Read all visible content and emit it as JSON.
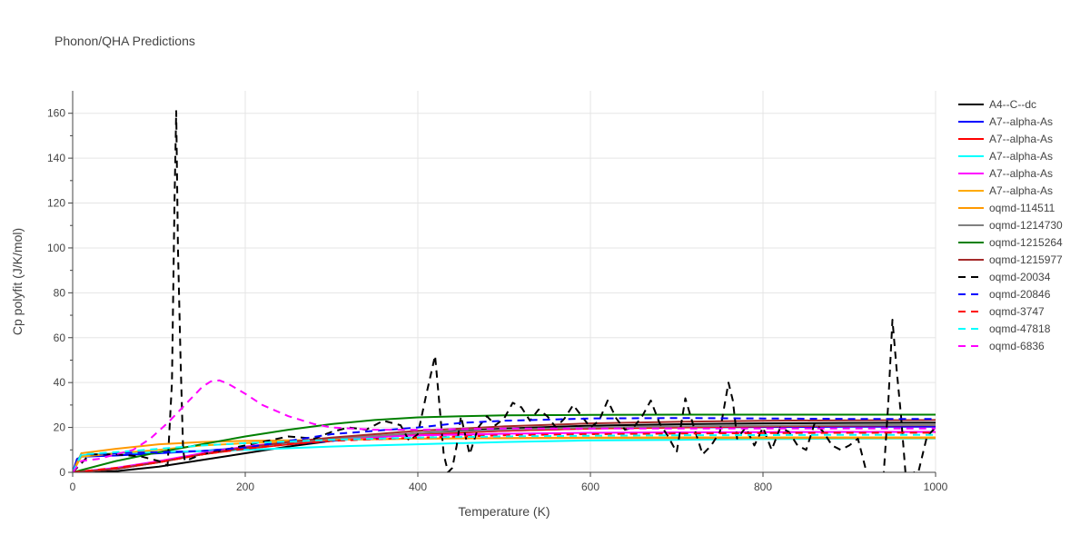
{
  "chart_data": {
    "type": "line",
    "title": "Phonon/QHA Predictions",
    "xlabel": "Temperature (K)",
    "ylabel": "Cp polyfit (J/K/mol)",
    "xlim": [
      0,
      1000
    ],
    "ylim": [
      0,
      170
    ],
    "xticks": [
      0,
      200,
      400,
      600,
      800,
      1000
    ],
    "yticks": [
      0,
      20,
      40,
      60,
      80,
      100,
      120,
      140,
      160
    ],
    "grid": true,
    "legend": "right",
    "series": [
      {
        "name": "A4--C--dc",
        "color": "#000000",
        "dash": "solid",
        "x": [
          0,
          50,
          100,
          150,
          200,
          250,
          300,
          350,
          400,
          450,
          500,
          550,
          600,
          700,
          800,
          900,
          1000
        ],
        "y": [
          0,
          0.5,
          2.5,
          5.5,
          8.5,
          11.5,
          14,
          16,
          17.5,
          18.5,
          19.5,
          20.2,
          20.8,
          21.4,
          21.8,
          22,
          22.1
        ]
      },
      {
        "name": "A7--alpha-As",
        "color": "#0000ff",
        "dash": "solid",
        "x": [
          0,
          5,
          10,
          50,
          100,
          150,
          200,
          300,
          400,
          500,
          600,
          700,
          800,
          900,
          1000
        ],
        "y": [
          0,
          6,
          7,
          7.5,
          8.5,
          9.5,
          11,
          14,
          17,
          18.5,
          19.5,
          20,
          20.2,
          20.3,
          20.3
        ]
      },
      {
        "name": "A7--alpha-As",
        "color": "#ff0000",
        "dash": "solid",
        "x": [
          0,
          50,
          100,
          150,
          200,
          250,
          300,
          400,
          500,
          600,
          700,
          800,
          900,
          1000
        ],
        "y": [
          0,
          1.5,
          4.5,
          8,
          10.5,
          12.5,
          14.5,
          17,
          18.5,
          19.5,
          20,
          20.5,
          20.8,
          21
        ]
      },
      {
        "name": "A7--alpha-As",
        "color": "#00ffff",
        "dash": "solid",
        "x": [
          0,
          10,
          20,
          50,
          100,
          200,
          300,
          400,
          500,
          600,
          700,
          800,
          900,
          1000
        ],
        "y": [
          0,
          7.5,
          8,
          8.5,
          9,
          10,
          11.5,
          12.5,
          13.5,
          14.2,
          14.5,
          14.8,
          15,
          15.1
        ]
      },
      {
        "name": "A7--alpha-As",
        "color": "#ff00ff",
        "dash": "solid",
        "x": [
          0,
          50,
          100,
          150,
          200,
          250,
          300,
          400,
          500,
          600,
          700,
          800,
          900,
          1000
        ],
        "y": [
          0,
          2,
          5,
          8.5,
          11.5,
          13.5,
          15,
          16.5,
          17.2,
          17.6,
          17.8,
          17.9,
          18,
          18
        ]
      },
      {
        "name": "A7--alpha-As",
        "color": "#ffaa00",
        "dash": "solid",
        "x": [
          0,
          10,
          50,
          100,
          150,
          200,
          300,
          400,
          500,
          600,
          700,
          800,
          900,
          1000
        ],
        "y": [
          0,
          7,
          8.5,
          10,
          12,
          13,
          14.5,
          15,
          15.3,
          15.5,
          15.6,
          15.6,
          15.6,
          15.6
        ]
      },
      {
        "name": "oqmd-114511",
        "color": "#ff9900",
        "dash": "solid",
        "x": [
          0,
          10,
          50,
          100,
          150,
          200,
          300,
          400,
          500,
          600,
          700,
          800,
          900,
          1000
        ],
        "y": [
          0,
          8.5,
          10.5,
          12.5,
          13.5,
          14,
          14.5,
          15,
          15.2,
          15.3,
          15.3,
          15.3,
          15.3,
          15.3
        ]
      },
      {
        "name": "oqmd-1214730",
        "color": "#808080",
        "dash": "solid",
        "x": [
          0,
          50,
          100,
          150,
          200,
          300,
          400,
          500,
          600,
          700,
          800,
          900,
          1000
        ],
        "y": [
          0,
          1.5,
          4.5,
          8,
          11,
          15,
          17.5,
          19,
          20,
          20.5,
          20.8,
          21,
          21.1
        ]
      },
      {
        "name": "oqmd-1215264",
        "color": "#008000",
        "dash": "solid",
        "x": [
          0,
          50,
          100,
          150,
          200,
          250,
          300,
          350,
          400,
          450,
          500,
          600,
          700,
          800,
          900,
          1000
        ],
        "y": [
          0,
          5,
          9,
          12.5,
          16,
          19,
          21.5,
          23.3,
          24.5,
          25,
          25.4,
          25.6,
          25.7,
          25.7,
          25.7,
          25.7
        ]
      },
      {
        "name": "oqmd-1215977",
        "color": "#a52a2a",
        "dash": "solid",
        "x": [
          0,
          50,
          100,
          150,
          200,
          250,
          300,
          400,
          500,
          600,
          700,
          800,
          900,
          1000
        ],
        "y": [
          0,
          1.5,
          4.5,
          8,
          11,
          13.5,
          15.5,
          18.5,
          20.5,
          21.8,
          22.5,
          23,
          23.2,
          23.3
        ]
      },
      {
        "name": "oqmd-20034",
        "color": "#000000",
        "dash": "dash",
        "x": [
          0,
          20,
          50,
          80,
          100,
          110,
          115,
          118,
          120,
          122,
          125,
          128,
          130,
          150,
          200,
          250,
          280,
          300,
          320,
          340,
          360,
          380,
          390,
          400,
          410,
          420,
          425,
          430,
          435,
          440,
          445,
          450,
          460,
          470,
          480,
          490,
          500,
          510,
          520,
          530,
          540,
          550,
          560,
          570,
          580,
          590,
          600,
          610,
          620,
          630,
          640,
          650,
          660,
          670,
          680,
          690,
          700,
          710,
          720,
          730,
          740,
          750,
          760,
          765,
          770,
          780,
          790,
          800,
          810,
          820,
          830,
          840,
          850,
          860,
          870,
          880,
          890,
          900,
          910,
          920,
          930,
          940,
          945,
          950,
          955,
          960,
          965,
          970,
          975,
          980,
          990,
          1000
        ],
        "y": [
          0,
          8,
          8,
          7,
          5,
          3,
          40,
          120,
          161,
          100,
          50,
          10,
          5,
          8,
          12,
          16,
          15,
          18,
          20,
          19,
          23,
          21,
          14,
          17,
          35,
          52,
          30,
          8,
          0,
          2,
          12,
          25,
          8,
          20,
          25,
          21,
          24,
          31,
          29,
          23,
          28,
          25,
          20,
          24,
          30,
          25,
          20,
          23,
          32,
          24,
          19,
          20,
          25,
          32,
          22,
          16,
          9,
          33,
          20,
          8,
          12,
          18,
          40,
          32,
          15,
          20,
          12,
          20,
          10,
          20,
          18,
          12,
          10,
          22,
          18,
          12,
          10,
          12,
          15,
          0,
          -2,
          0,
          30,
          68,
          45,
          25,
          0,
          -2,
          0,
          0,
          16,
          20
        ]
      },
      {
        "name": "oqmd-20846",
        "color": "#0000ff",
        "dash": "dash",
        "x": [
          0,
          10,
          50,
          100,
          150,
          200,
          250,
          300,
          400,
          450,
          500,
          600,
          700,
          800,
          900,
          1000
        ],
        "y": [
          0,
          8,
          8.5,
          9,
          9.5,
          11,
          14,
          17,
          20,
          22,
          23,
          24,
          24.2,
          24,
          23.8,
          23.8
        ]
      },
      {
        "name": "oqmd-3747",
        "color": "#ff0000",
        "dash": "dash",
        "x": [
          0,
          50,
          100,
          150,
          200,
          250,
          300,
          400,
          500,
          600,
          700,
          800,
          900,
          1000
        ],
        "y": [
          0,
          2,
          4.5,
          8,
          10.5,
          12.5,
          14,
          15.5,
          16.5,
          17,
          17.3,
          17.5,
          17.6,
          17.7
        ]
      },
      {
        "name": "oqmd-47818",
        "color": "#00ffff",
        "dash": "dash",
        "x": [
          0,
          10,
          50,
          100,
          150,
          200,
          300,
          400,
          500,
          600,
          700,
          800,
          900,
          1000
        ],
        "y": [
          0,
          8,
          9,
          10.5,
          12,
          13,
          14.5,
          15.5,
          16,
          16.3,
          16.5,
          16.6,
          16.7,
          16.7
        ]
      },
      {
        "name": "oqmd-6836",
        "color": "#ff00ff",
        "dash": "dash",
        "x": [
          0,
          10,
          30,
          50,
          70,
          90,
          110,
          130,
          150,
          160,
          170,
          180,
          200,
          220,
          250,
          280,
          300,
          350,
          400,
          500,
          600,
          700,
          800,
          900,
          1000
        ],
        "y": [
          0,
          5,
          6,
          8,
          10,
          15,
          22,
          30,
          38,
          40.5,
          41,
          39.5,
          35,
          30,
          25,
          21.5,
          20,
          19,
          19,
          19.5,
          19.5,
          19.5,
          19.5,
          19.5,
          19.5
        ]
      }
    ]
  }
}
